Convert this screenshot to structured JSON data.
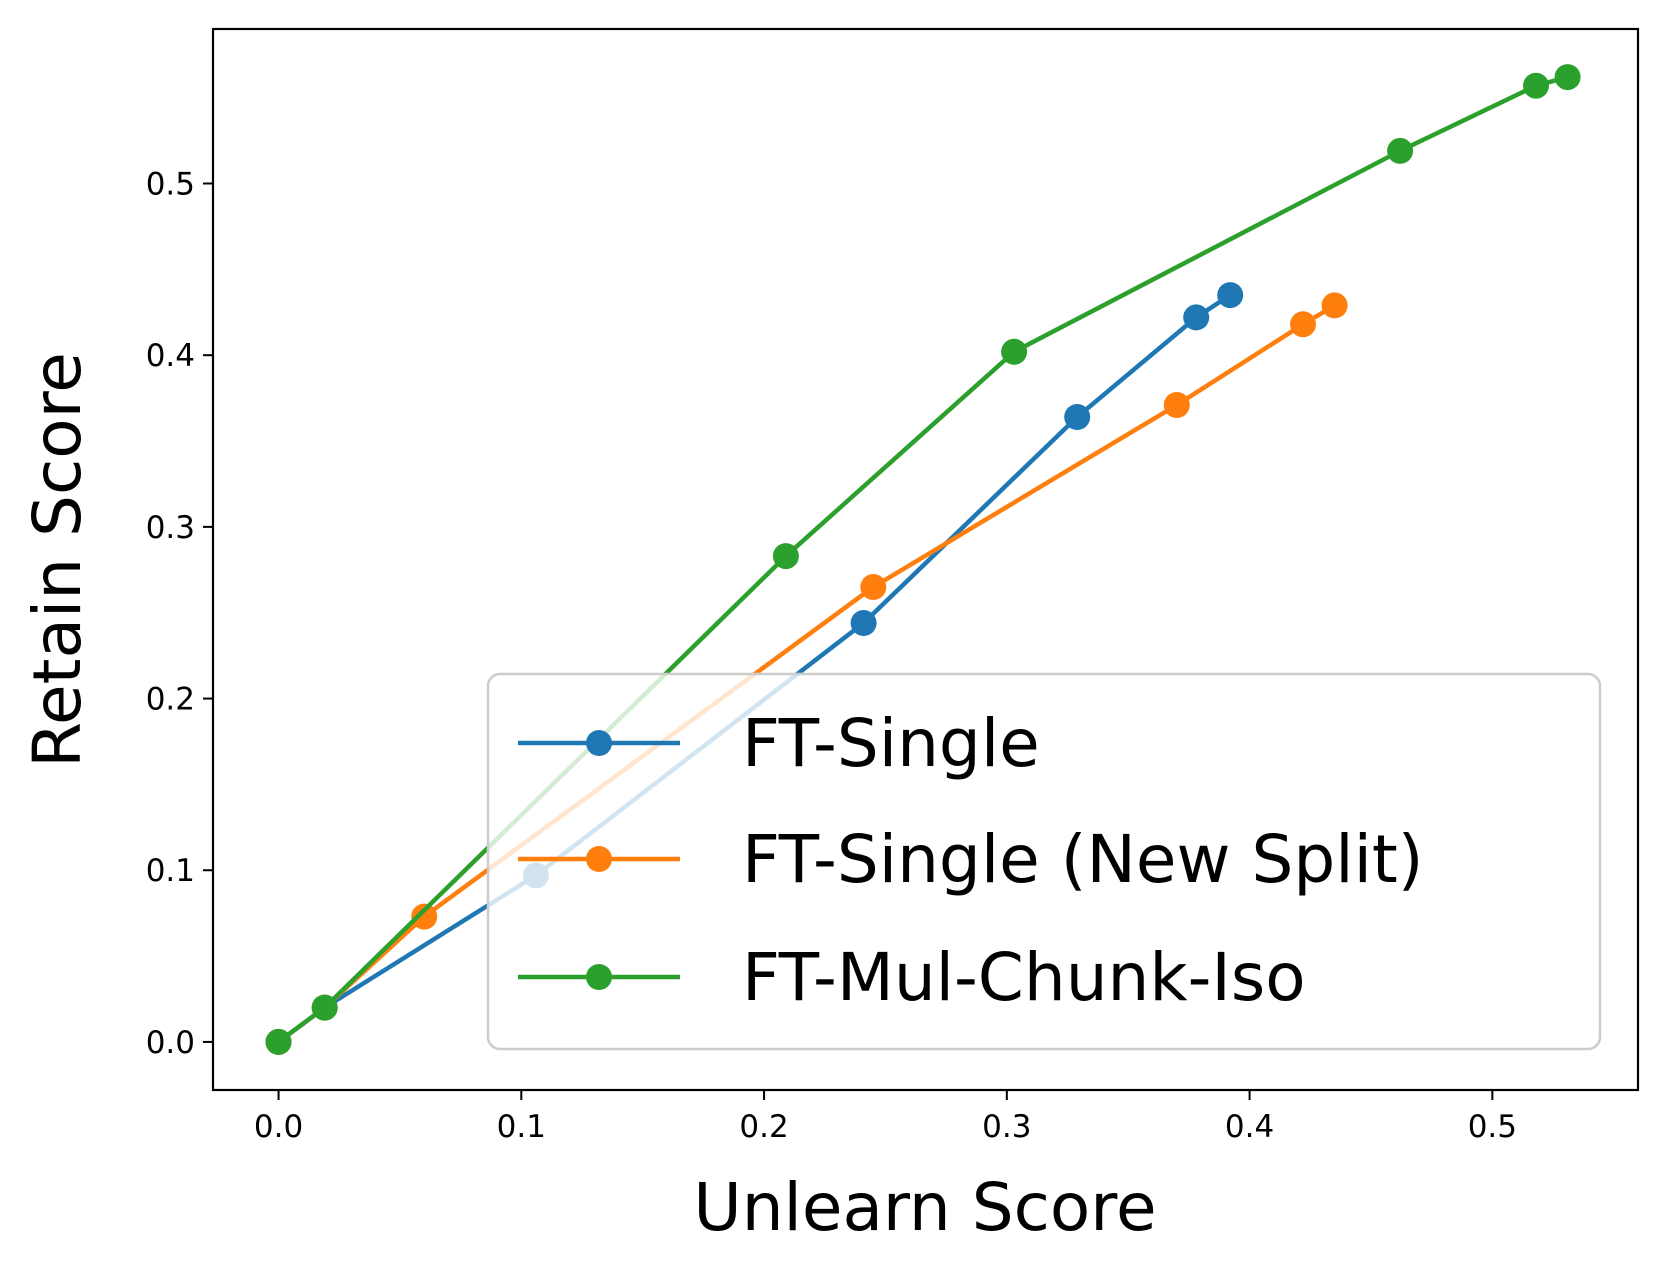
{
  "chart_data": {
    "type": "line",
    "xlabel": "Unlearn Score",
    "ylabel": "Retain Score",
    "xlim": [
      -0.027,
      0.56
    ],
    "ylim": [
      -0.028,
      0.59
    ],
    "xticks": [
      "0.0",
      "0.1",
      "0.2",
      "0.3",
      "0.4",
      "0.5"
    ],
    "yticks": [
      "0.0",
      "0.1",
      "0.2",
      "0.3",
      "0.4",
      "0.5"
    ],
    "grid": false,
    "legend_position": "lower right",
    "series": [
      {
        "name": "FT-Single",
        "color": "#1f77b4",
        "x": [
          0.0,
          0.019,
          0.106,
          0.241,
          0.329,
          0.378,
          0.392
        ],
        "y": [
          0.0,
          0.02,
          0.097,
          0.244,
          0.364,
          0.422,
          0.435
        ]
      },
      {
        "name": "FT-Single (New Split)",
        "color": "#ff7f0e",
        "x": [
          0.0,
          0.019,
          0.06,
          0.245,
          0.37,
          0.422,
          0.435
        ],
        "y": [
          0.0,
          0.02,
          0.073,
          0.265,
          0.371,
          0.418,
          0.429
        ]
      },
      {
        "name": "FT-Mul-Chunk-Iso",
        "color": "#2ca02c",
        "x": [
          0.0,
          0.019,
          0.209,
          0.303,
          0.462,
          0.518,
          0.531
        ],
        "y": [
          0.0,
          0.02,
          0.283,
          0.402,
          0.519,
          0.557,
          0.562
        ]
      }
    ]
  }
}
